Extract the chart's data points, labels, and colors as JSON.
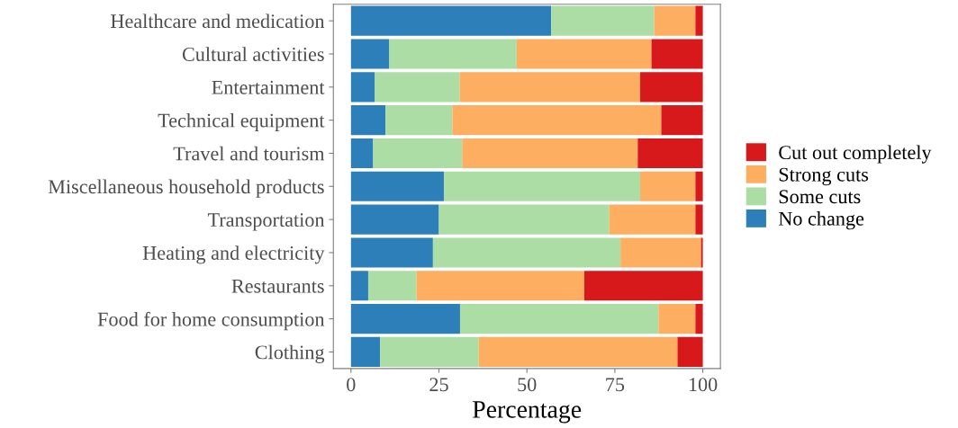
{
  "chart_data": {
    "type": "bar",
    "orientation": "horizontal",
    "stacked": true,
    "xlabel": "Percentage",
    "categories": [
      "Healthcare and medication",
      "Cultural activities",
      "Entertainment",
      "Technical equipment",
      "Travel and tourism",
      "Miscellaneous household products",
      "Transportation",
      "Heating and electricity",
      "Restaurants",
      "Food for home consumption",
      "Clothing"
    ],
    "series": [
      {
        "name": "No change",
        "color": "#2c7fb8",
        "values": [
          56.9,
          10.9,
          6.8,
          9.8,
          6.3,
          26.4,
          25.0,
          23.3,
          4.9,
          31.0,
          8.3
        ]
      },
      {
        "name": "Some cuts",
        "color": "#abdda4",
        "values": [
          29.3,
          36.2,
          24.1,
          19.0,
          25.3,
          55.8,
          48.4,
          53.3,
          13.7,
          56.4,
          28.0
        ]
      },
      {
        "name": "Strong cuts",
        "color": "#fdae61",
        "values": [
          11.7,
          38.3,
          51.3,
          59.4,
          49.9,
          15.7,
          24.5,
          22.9,
          47.7,
          10.5,
          56.5
        ]
      },
      {
        "name": "Cut out completely",
        "color": "#d7191c",
        "values": [
          2.1,
          14.6,
          17.8,
          11.8,
          18.5,
          2.1,
          2.1,
          0.5,
          33.7,
          2.1,
          7.2
        ]
      }
    ],
    "xlim": [
      -5,
      105
    ],
    "xticks": [
      0,
      25,
      50,
      75,
      100
    ],
    "grid": false,
    "legend": "right"
  }
}
